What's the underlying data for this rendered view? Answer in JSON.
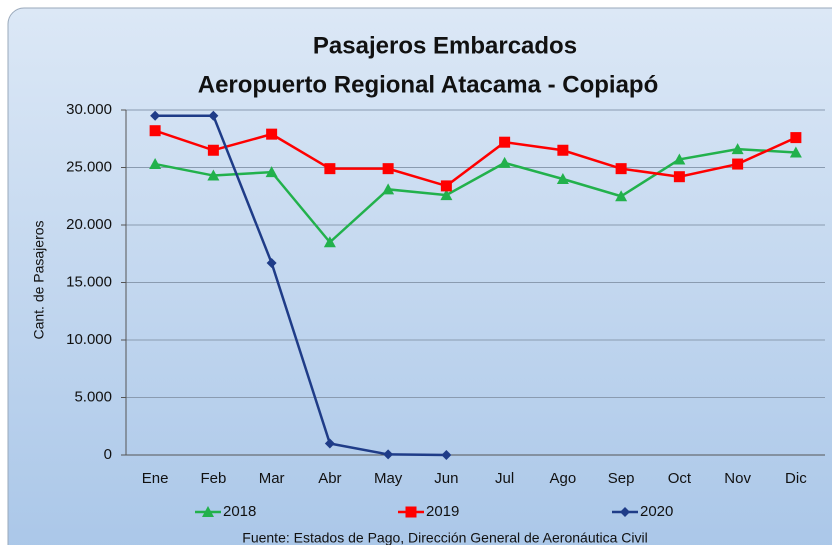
{
  "chart_data": {
    "type": "line",
    "title": "Pasajeros Embarcados",
    "subtitle": "Aeropuerto Regional Atacama - Copiapó",
    "y_label": "Cant. de Pasajeros",
    "source": "Fuente: Estados de Pago, Dirección General de Aeronáutica Civil",
    "categories": [
      "Ene",
      "Feb",
      "Mar",
      "Abr",
      "May",
      "Jun",
      "Jul",
      "Ago",
      "Sep",
      "Oct",
      "Nov",
      "Dic"
    ],
    "series": [
      {
        "name": "2018",
        "color": "#22b14c",
        "marker": "triangle",
        "values": [
          25300,
          24300,
          24600,
          18500,
          23100,
          22600,
          25400,
          24000,
          22500,
          25700,
          26600,
          26300
        ]
      },
      {
        "name": "2019",
        "color": "#ff0000",
        "marker": "square",
        "values": [
          28200,
          26500,
          27900,
          24900,
          24900,
          23400,
          27200,
          26500,
          24900,
          24200,
          25300,
          27600
        ]
      },
      {
        "name": "2020",
        "color": "#1f3c88",
        "marker": "diamond",
        "values": [
          29500,
          29500,
          16700,
          1000,
          50,
          0,
          null,
          null,
          null,
          null,
          null,
          null
        ]
      }
    ],
    "ylim": [
      0,
      30000
    ],
    "yticks": [
      0,
      {
        "value": 5000,
        "label": "5.000"
      },
      {
        "value": 10000,
        "label": "10.000"
      },
      {
        "value": 15000,
        "label": "15.000"
      },
      {
        "value": 20000,
        "label": "20.000"
      },
      {
        "value": 25000,
        "label": "25.000"
      },
      {
        "value": 30000,
        "label": "30.000"
      }
    ],
    "grid": true,
    "legend": "bottom"
  }
}
